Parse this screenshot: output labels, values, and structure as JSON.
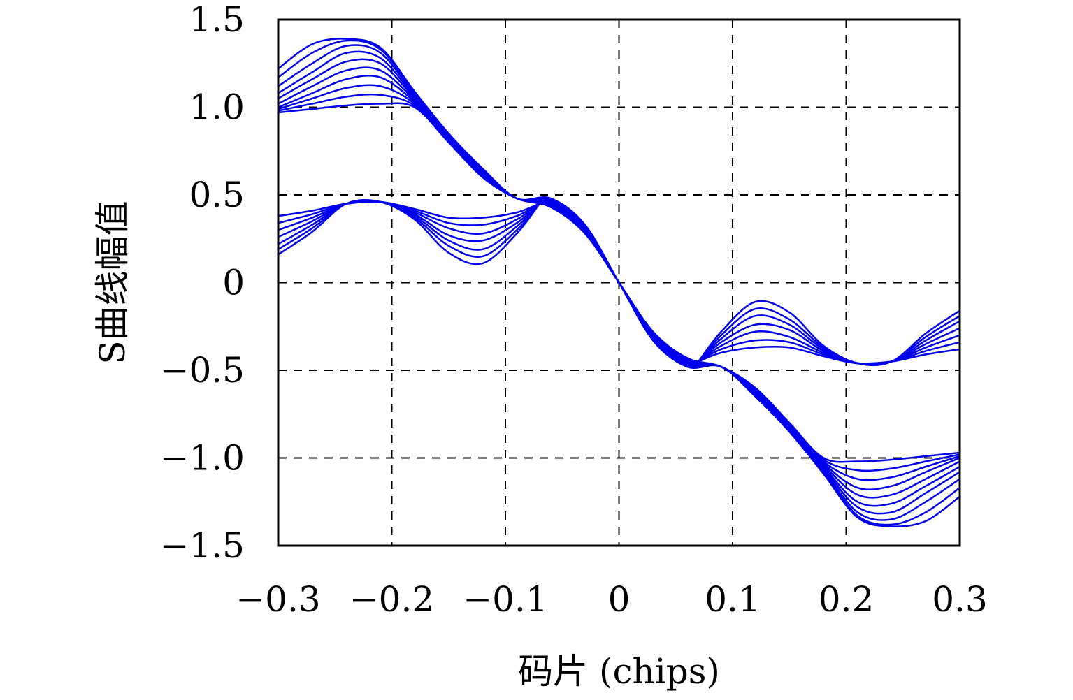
{
  "chart_data": {
    "type": "line",
    "xlabel": "码片 (chips)",
    "ylabel": "S曲线幅值",
    "xlim": [
      -0.3,
      0.3
    ],
    "ylim": [
      -1.5,
      1.5
    ],
    "grid": true,
    "x_ticks": [
      -0.3,
      -0.2,
      -0.1,
      0,
      0.1,
      0.2,
      0.3
    ],
    "x_tick_labels": [
      "−0.3",
      "−0.2",
      "−0.1",
      "0",
      "0.1",
      "0.2",
      "0.3"
    ],
    "y_ticks": [
      1.5,
      1.0,
      0.5,
      0,
      -0.5,
      -1.0,
      -1.5
    ],
    "y_tick_labels": [
      "1.5",
      "1.0",
      "0.5",
      "0",
      "−0.5",
      "−1.0",
      "−1.5"
    ],
    "line_color": "#0000ee",
    "series_main": [
      {
        "x": [
          -0.3,
          -0.27,
          -0.24,
          -0.21,
          -0.18,
          -0.15,
          -0.12,
          -0.09,
          -0.06,
          -0.03,
          0.0,
          0.03,
          0.06,
          0.09,
          0.12,
          0.15,
          0.18,
          0.21,
          0.24,
          0.27,
          0.3
        ],
        "values": [
          0.97,
          0.99,
          1.01,
          1.02,
          1.0,
          0.8,
          0.6,
          0.48,
          0.43,
          0.28,
          0.0,
          -0.28,
          -0.43,
          -0.48,
          -0.6,
          -0.8,
          -1.0,
          -1.02,
          -1.01,
          -0.99,
          -0.97
        ]
      },
      {
        "x": [
          -0.3,
          -0.27,
          -0.24,
          -0.21,
          -0.18,
          -0.15,
          -0.12,
          -0.09,
          -0.06,
          -0.03,
          0.0,
          0.03,
          0.06,
          0.09,
          0.12,
          0.15,
          0.18,
          0.21,
          0.24,
          0.27,
          0.3
        ],
        "values": [
          0.98,
          1.02,
          1.06,
          1.07,
          1.01,
          0.81,
          0.61,
          0.48,
          0.44,
          0.29,
          0.0,
          -0.29,
          -0.44,
          -0.48,
          -0.61,
          -0.81,
          -1.01,
          -1.07,
          -1.06,
          -1.02,
          -0.98
        ]
      },
      {
        "x": [
          -0.3,
          -0.27,
          -0.24,
          -0.21,
          -0.18,
          -0.15,
          -0.12,
          -0.09,
          -0.06,
          -0.03,
          0.0,
          0.03,
          0.06,
          0.09,
          0.12,
          0.15,
          0.18,
          0.21,
          0.24,
          0.27,
          0.3
        ],
        "values": [
          0.99,
          1.05,
          1.11,
          1.12,
          1.02,
          0.81,
          0.61,
          0.48,
          0.44,
          0.29,
          0.0,
          -0.29,
          -0.44,
          -0.48,
          -0.61,
          -0.81,
          -1.02,
          -1.12,
          -1.11,
          -1.05,
          -0.99
        ]
      },
      {
        "x": [
          -0.3,
          -0.27,
          -0.24,
          -0.21,
          -0.18,
          -0.15,
          -0.12,
          -0.09,
          -0.06,
          -0.03,
          0.0,
          0.03,
          0.06,
          0.09,
          0.12,
          0.15,
          0.18,
          0.21,
          0.24,
          0.27,
          0.3
        ],
        "values": [
          1.0,
          1.08,
          1.16,
          1.17,
          1.03,
          0.82,
          0.62,
          0.48,
          0.45,
          0.3,
          0.0,
          -0.3,
          -0.45,
          -0.48,
          -0.62,
          -0.82,
          -1.03,
          -1.17,
          -1.16,
          -1.08,
          -1.0
        ]
      },
      {
        "x": [
          -0.3,
          -0.27,
          -0.24,
          -0.21,
          -0.18,
          -0.15,
          -0.12,
          -0.09,
          -0.06,
          -0.03,
          0.0,
          0.03,
          0.06,
          0.09,
          0.12,
          0.15,
          0.18,
          0.21,
          0.24,
          0.27,
          0.3
        ],
        "values": [
          1.02,
          1.12,
          1.21,
          1.21,
          1.04,
          0.82,
          0.62,
          0.48,
          0.45,
          0.3,
          0.0,
          -0.3,
          -0.45,
          -0.48,
          -0.62,
          -0.82,
          -1.04,
          -1.21,
          -1.21,
          -1.12,
          -1.02
        ]
      },
      {
        "x": [
          -0.3,
          -0.27,
          -0.24,
          -0.21,
          -0.18,
          -0.15,
          -0.12,
          -0.09,
          -0.06,
          -0.03,
          0.0,
          0.03,
          0.06,
          0.09,
          0.12,
          0.15,
          0.18,
          0.21,
          0.24,
          0.27,
          0.3
        ],
        "values": [
          1.05,
          1.16,
          1.26,
          1.25,
          1.05,
          0.83,
          0.63,
          0.48,
          0.46,
          0.31,
          0.0,
          -0.31,
          -0.46,
          -0.48,
          -0.63,
          -0.83,
          -1.05,
          -1.25,
          -1.26,
          -1.16,
          -1.05
        ]
      },
      {
        "x": [
          -0.3,
          -0.27,
          -0.24,
          -0.21,
          -0.18,
          -0.15,
          -0.12,
          -0.09,
          -0.06,
          -0.03,
          0.0,
          0.03,
          0.06,
          0.09,
          0.12,
          0.15,
          0.18,
          0.21,
          0.24,
          0.27,
          0.3
        ],
        "values": [
          1.08,
          1.2,
          1.31,
          1.28,
          1.06,
          0.83,
          0.63,
          0.48,
          0.46,
          0.31,
          0.0,
          -0.31,
          -0.46,
          -0.48,
          -0.63,
          -0.83,
          -1.06,
          -1.28,
          -1.31,
          -1.2,
          -1.08
        ]
      },
      {
        "x": [
          -0.3,
          -0.27,
          -0.24,
          -0.21,
          -0.18,
          -0.15,
          -0.12,
          -0.09,
          -0.06,
          -0.03,
          0.0,
          0.03,
          0.06,
          0.09,
          0.12,
          0.15,
          0.18,
          0.21,
          0.24,
          0.27,
          0.3
        ],
        "values": [
          1.12,
          1.25,
          1.35,
          1.31,
          1.07,
          0.84,
          0.64,
          0.48,
          0.47,
          0.32,
          0.0,
          -0.32,
          -0.47,
          -0.48,
          -0.64,
          -0.84,
          -1.07,
          -1.31,
          -1.35,
          -1.25,
          -1.12
        ]
      },
      {
        "x": [
          -0.3,
          -0.27,
          -0.24,
          -0.21,
          -0.18,
          -0.15,
          -0.12,
          -0.09,
          -0.06,
          -0.03,
          0.0,
          0.03,
          0.06,
          0.09,
          0.12,
          0.15,
          0.18,
          0.21,
          0.24,
          0.27,
          0.3
        ],
        "values": [
          1.17,
          1.31,
          1.38,
          1.33,
          1.08,
          0.84,
          0.64,
          0.48,
          0.47,
          0.32,
          0.0,
          -0.32,
          -0.47,
          -0.48,
          -0.64,
          -0.84,
          -1.08,
          -1.33,
          -1.38,
          -1.31,
          -1.17
        ]
      },
      {
        "x": [
          -0.3,
          -0.27,
          -0.24,
          -0.21,
          -0.18,
          -0.15,
          -0.12,
          -0.09,
          -0.06,
          -0.03,
          0.0,
          0.03,
          0.06,
          0.09,
          0.12,
          0.15,
          0.18,
          0.21,
          0.24,
          0.27,
          0.3
        ],
        "values": [
          1.22,
          1.36,
          1.39,
          1.34,
          1.09,
          0.85,
          0.65,
          0.48,
          0.48,
          0.33,
          0.0,
          -0.33,
          -0.48,
          -0.48,
          -0.65,
          -0.85,
          -1.09,
          -1.34,
          -1.39,
          -1.36,
          -1.22
        ]
      }
    ],
    "series_side": [
      {
        "x": [
          -0.3,
          -0.27,
          -0.24,
          -0.21,
          -0.18,
          -0.15,
          -0.12,
          -0.09,
          -0.07
        ],
        "values": [
          0.38,
          0.41,
          0.45,
          0.46,
          0.42,
          0.37,
          0.37,
          0.4,
          0.45
        ]
      },
      {
        "x": [
          -0.3,
          -0.27,
          -0.24,
          -0.21,
          -0.18,
          -0.15,
          -0.12,
          -0.09,
          -0.07
        ],
        "values": [
          0.34,
          0.39,
          0.45,
          0.46,
          0.41,
          0.34,
          0.33,
          0.38,
          0.45
        ]
      },
      {
        "x": [
          -0.3,
          -0.27,
          -0.24,
          -0.21,
          -0.18,
          -0.15,
          -0.12,
          -0.09,
          -0.07
        ],
        "values": [
          0.3,
          0.37,
          0.45,
          0.46,
          0.4,
          0.31,
          0.28,
          0.36,
          0.45
        ]
      },
      {
        "x": [
          -0.3,
          -0.27,
          -0.24,
          -0.21,
          -0.18,
          -0.15,
          -0.12,
          -0.09,
          -0.07
        ],
        "values": [
          0.26,
          0.35,
          0.45,
          0.46,
          0.39,
          0.27,
          0.24,
          0.34,
          0.45
        ]
      },
      {
        "x": [
          -0.3,
          -0.27,
          -0.24,
          -0.21,
          -0.18,
          -0.15,
          -0.12,
          -0.09,
          -0.07
        ],
        "values": [
          0.22,
          0.33,
          0.45,
          0.46,
          0.38,
          0.24,
          0.19,
          0.32,
          0.45
        ]
      },
      {
        "x": [
          -0.3,
          -0.27,
          -0.24,
          -0.21,
          -0.18,
          -0.15,
          -0.12,
          -0.09,
          -0.07
        ],
        "values": [
          0.19,
          0.31,
          0.45,
          0.46,
          0.37,
          0.21,
          0.15,
          0.3,
          0.45
        ]
      },
      {
        "x": [
          -0.3,
          -0.27,
          -0.24,
          -0.21,
          -0.18,
          -0.15,
          -0.12,
          -0.09,
          -0.07
        ],
        "values": [
          0.16,
          0.29,
          0.45,
          0.46,
          0.36,
          0.17,
          0.11,
          0.28,
          0.45
        ]
      },
      {
        "x": [
          0.07,
          0.09,
          0.12,
          0.15,
          0.18,
          0.21,
          0.24,
          0.27,
          0.3
        ],
        "values": [
          -0.45,
          -0.4,
          -0.37,
          -0.37,
          -0.42,
          -0.46,
          -0.45,
          -0.41,
          -0.38
        ]
      },
      {
        "x": [
          0.07,
          0.09,
          0.12,
          0.15,
          0.18,
          0.21,
          0.24,
          0.27,
          0.3
        ],
        "values": [
          -0.45,
          -0.38,
          -0.33,
          -0.34,
          -0.41,
          -0.46,
          -0.45,
          -0.39,
          -0.34
        ]
      },
      {
        "x": [
          0.07,
          0.09,
          0.12,
          0.15,
          0.18,
          0.21,
          0.24,
          0.27,
          0.3
        ],
        "values": [
          -0.45,
          -0.36,
          -0.28,
          -0.31,
          -0.4,
          -0.46,
          -0.45,
          -0.37,
          -0.3
        ]
      },
      {
        "x": [
          0.07,
          0.09,
          0.12,
          0.15,
          0.18,
          0.21,
          0.24,
          0.27,
          0.3
        ],
        "values": [
          -0.45,
          -0.34,
          -0.24,
          -0.27,
          -0.39,
          -0.46,
          -0.45,
          -0.35,
          -0.26
        ]
      },
      {
        "x": [
          0.07,
          0.09,
          0.12,
          0.15,
          0.18,
          0.21,
          0.24,
          0.27,
          0.3
        ],
        "values": [
          -0.45,
          -0.32,
          -0.19,
          -0.24,
          -0.38,
          -0.46,
          -0.45,
          -0.33,
          -0.22
        ]
      },
      {
        "x": [
          0.07,
          0.09,
          0.12,
          0.15,
          0.18,
          0.21,
          0.24,
          0.27,
          0.3
        ],
        "values": [
          -0.45,
          -0.3,
          -0.15,
          -0.21,
          -0.37,
          -0.46,
          -0.45,
          -0.31,
          -0.19
        ]
      },
      {
        "x": [
          0.07,
          0.09,
          0.12,
          0.15,
          0.18,
          0.21,
          0.24,
          0.27,
          0.3
        ],
        "values": [
          -0.45,
          -0.28,
          -0.11,
          -0.17,
          -0.36,
          -0.46,
          -0.45,
          -0.29,
          -0.16
        ]
      }
    ]
  }
}
